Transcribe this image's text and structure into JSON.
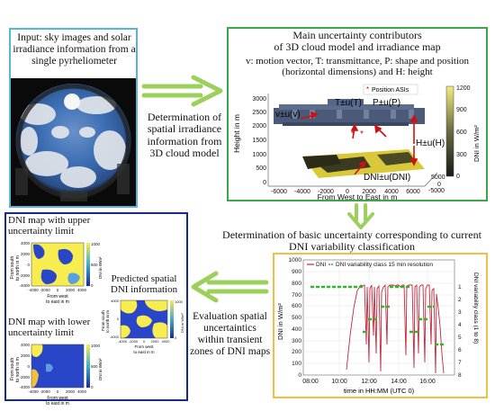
{
  "input_box": {
    "text_lines": [
      "Input: sky images and solar",
      "irradiance information from a",
      "single pyrheliometer"
    ],
    "border_color": "#5bb3d8"
  },
  "arrow1_label_lines": [
    "Determination of",
    "spatial irradiance",
    "information from",
    "3D cloud model"
  ],
  "uncertainty_box": {
    "title_lines": [
      "Main uncertainty contributors",
      "of 3D cloud model and irradiance map"
    ],
    "desc_lines": [
      "v:  motion vector, T: transmittance, P: shape and position",
      "(horizontal dimensions) and H: height"
    ],
    "border_color": "#3aa84a",
    "plot": {
      "legend": "Position ASIs",
      "ylabel": "Height in m",
      "xlabel": "From West to East in m",
      "colorbar_label": "DNI in W/m²",
      "colorbar_ticks": [
        "1200",
        "900",
        "600",
        "300",
        "0"
      ],
      "z_ticks": [
        "3000",
        "2500",
        "2000",
        "1500",
        "1000",
        "500",
        "0"
      ],
      "x_ticks": [
        "-6000",
        "-4000",
        "-2000",
        "0",
        "2000",
        "4000",
        "6000"
      ],
      "depth_ticks": [
        "5000",
        "0",
        "-5000"
      ],
      "labels": {
        "v": "v±u(v)",
        "t": "T±u(T)",
        "p": "P±u(P)",
        "h": "H±u(H)",
        "dni": "DNI±u(DNI)"
      }
    }
  },
  "arrow2_label_lines": [
    "Determination of basic uncertainty corresponding to current",
    "DNI variability classification"
  ],
  "variability_box": {
    "border_color": "#f0c040",
    "plot": {
      "legend": "DNI",
      "legend2": "DNI variability class 15 min resolution",
      "ylabel": "DNI in W/m²",
      "ylabel_right": "DNI variability class (1 to 8)",
      "xlabel": "time in HH:MM (UTC 0)",
      "y_ticks": [
        "1000",
        "900",
        "800",
        "700",
        "600",
        "500",
        "400",
        "300",
        "200",
        "100",
        "0"
      ],
      "y_right_ticks": [
        "1",
        "2",
        "3",
        "4",
        "5",
        "6",
        "7",
        "8"
      ],
      "x_ticks": [
        "08:00",
        "10:00",
        "12:00",
        "14:00",
        "16:00"
      ]
    }
  },
  "arrow3_label_lines": [
    "Evaluation spatial",
    "uncertaintics",
    "within transient",
    "zones of DNI maps"
  ],
  "maps_box": {
    "border_color": "#1a2a8a",
    "upper_title_lines": [
      "DNI map with upper",
      "uncertainty limit"
    ],
    "predicted_title_lines": [
      "Predicted spatial",
      "DNI information"
    ],
    "lower_title_lines": [
      "DNI map with lower",
      "uncertainty limit"
    ],
    "map_ylabel_lines": [
      "From south",
      "to north in m"
    ],
    "map_xlabel_lines": [
      "From west",
      "to east in m"
    ],
    "y_ticks": [
      "4000",
      "2000",
      "0",
      "-2000",
      "-4000"
    ],
    "x_ticks": [
      "-4000",
      "-2000",
      "0",
      "2000",
      "4000"
    ],
    "cbar_ticks": [
      "1000",
      "500",
      "0"
    ],
    "cbar_label": "DNI in W/m²"
  }
}
